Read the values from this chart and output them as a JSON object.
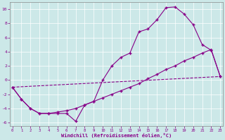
{
  "xlabel": "Windchill (Refroidissement éolien,°C)",
  "bg_color": "#cce8e8",
  "line_color": "#880088",
  "xlim": [
    -0.3,
    23.3
  ],
  "ylim": [
    -6.5,
    11.0
  ],
  "yticks": [
    -6,
    -4,
    -2,
    0,
    2,
    4,
    6,
    8,
    10
  ],
  "xticks": [
    0,
    1,
    2,
    3,
    4,
    5,
    6,
    7,
    8,
    9,
    10,
    11,
    12,
    13,
    14,
    15,
    16,
    17,
    18,
    19,
    20,
    21,
    22,
    23
  ],
  "line1_x": [
    0,
    1,
    2,
    3,
    4,
    5,
    6,
    7,
    8,
    9,
    10,
    11,
    12,
    13,
    14,
    15,
    16,
    17,
    18,
    19,
    20,
    21,
    22,
    23
  ],
  "line1_y": [
    -1.0,
    -2.7,
    -4.0,
    -4.7,
    -4.7,
    -4.7,
    -4.7,
    -5.8,
    -3.5,
    -3.0,
    0.0,
    2.0,
    3.2,
    3.8,
    6.8,
    7.2,
    8.5,
    10.2,
    10.3,
    9.3,
    7.8,
    5.0,
    4.2,
    0.5
  ],
  "line2_x": [
    0,
    1,
    2,
    3,
    4,
    5,
    6,
    7,
    8,
    9,
    10,
    11,
    12,
    13,
    14,
    15,
    16,
    17,
    18,
    19,
    20,
    21,
    22,
    23
  ],
  "line2_y": [
    -1.0,
    -2.7,
    -4.0,
    -4.7,
    -4.7,
    -4.5,
    -4.3,
    -4.0,
    -3.5,
    -3.0,
    -2.5,
    -2.0,
    -1.5,
    -1.0,
    -0.5,
    0.2,
    0.8,
    1.5,
    2.0,
    2.7,
    3.2,
    3.8,
    4.3,
    0.5
  ],
  "line3_x": [
    0,
    23
  ],
  "line3_y": [
    -1.0,
    0.5
  ]
}
